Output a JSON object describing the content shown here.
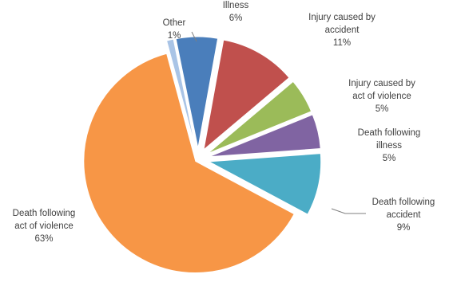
{
  "chart_data": {
    "type": "pie",
    "title": "",
    "start_angle_deg": -15,
    "direction": "clockwise",
    "exploded": true,
    "legend": "none",
    "slices": [
      {
        "label_lines": [
          "Other",
          "1%"
        ],
        "value": 1,
        "color": "#a9c4e6"
      },
      {
        "label_lines": [
          "Illness",
          "6%"
        ],
        "value": 6,
        "color": "#4a7ebb"
      },
      {
        "label_lines": [
          "Injury caused by",
          "accident",
          "11%"
        ],
        "value": 11,
        "color": "#c0504d"
      },
      {
        "label_lines": [
          "Injury caused by",
          "act of violence",
          "5%"
        ],
        "value": 5,
        "color": "#9bbb59"
      },
      {
        "label_lines": [
          "Death following",
          "illness",
          "5%"
        ],
        "value": 5,
        "color": "#8064a2"
      },
      {
        "label_lines": [
          "Death following",
          "accident",
          "9%"
        ],
        "value": 9,
        "color": "#4bacc6"
      },
      {
        "label_lines": [
          "Death following",
          "act of violence",
          "63%"
        ],
        "value": 63,
        "color": "#f79646"
      }
    ]
  }
}
